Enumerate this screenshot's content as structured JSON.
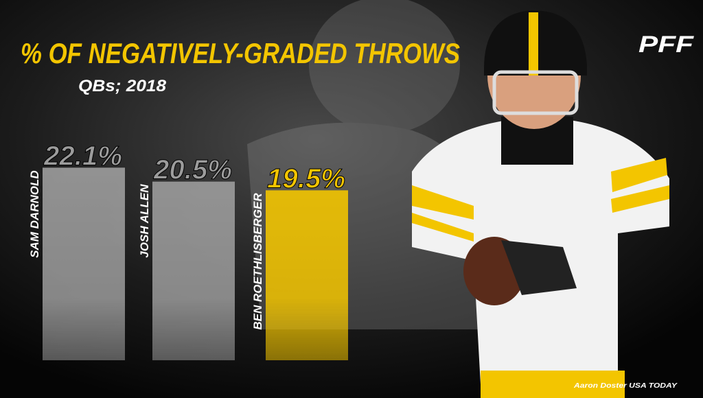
{
  "chart_data": {
    "type": "bar",
    "title": "% OF NEGATIVELY-GRADED THROWS",
    "subtitle": "QBs; 2018",
    "categories": [
      "SAM DARNOLD",
      "JOSH ALLEN",
      "BEN ROETHLISBERGER"
    ],
    "values": [
      22.1,
      20.5,
      19.5
    ],
    "value_labels": [
      "22.1%",
      "20.5%",
      "19.5%"
    ],
    "colors": [
      "#9c9c9c",
      "#9c9c9c",
      "#f3c500"
    ],
    "logo": "PFF",
    "credit": "Aaron Doster USA TODAY"
  }
}
